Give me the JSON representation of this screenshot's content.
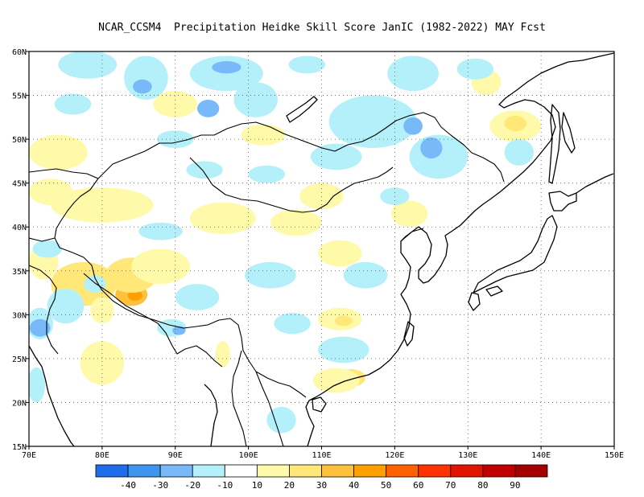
{
  "title": "NCAR_CCSM4  Precipitation Heidke Skill Score JanIC (1982-2022) MAY Fcst",
  "map": {
    "lon_range": [
      70,
      150
    ],
    "lat_range": [
      15,
      60
    ],
    "lon_ticks": [
      {
        "value": 70,
        "label": "70E"
      },
      {
        "value": 80,
        "label": "80E"
      },
      {
        "value": 90,
        "label": "90E"
      },
      {
        "value": 100,
        "label": "100E"
      },
      {
        "value": 110,
        "label": "110E"
      },
      {
        "value": 120,
        "label": "120E"
      },
      {
        "value": 130,
        "label": "130E"
      },
      {
        "value": 140,
        "label": "140E"
      },
      {
        "value": 150,
        "label": "150E"
      }
    ],
    "lat_ticks": [
      {
        "value": 15,
        "label": "15N"
      },
      {
        "value": 20,
        "label": "20N"
      },
      {
        "value": 25,
        "label": "25N"
      },
      {
        "value": 30,
        "label": "30N"
      },
      {
        "value": 35,
        "label": "35N"
      },
      {
        "value": 40,
        "label": "40N"
      },
      {
        "value": 45,
        "label": "45N"
      },
      {
        "value": 50,
        "label": "50N"
      },
      {
        "value": 55,
        "label": "55N"
      },
      {
        "value": 60,
        "label": "60N"
      }
    ],
    "grid": "dotted",
    "background_color": "#ffffff",
    "coastline_color": "#000000"
  },
  "colorbar": {
    "bins": [
      {
        "color": "#1e6eeb"
      },
      {
        "color": "#3c96f0"
      },
      {
        "color": "#78b9fa"
      },
      {
        "color": "#b4f0fa"
      },
      {
        "color": "#ffffff"
      },
      {
        "color": "#fffaaa"
      },
      {
        "color": "#ffe878"
      },
      {
        "color": "#ffc03c"
      },
      {
        "color": "#ffa000"
      },
      {
        "color": "#ff6000"
      },
      {
        "color": "#ff3200"
      },
      {
        "color": "#e11400"
      },
      {
        "color": "#c00000"
      },
      {
        "color": "#a50000"
      }
    ],
    "labels": [
      "-40",
      "-30",
      "-20",
      "-10",
      "10",
      "20",
      "30",
      "40",
      "50",
      "60",
      "70",
      "80",
      "90"
    ]
  },
  "skill_patches": [
    {
      "lon": 77.5,
      "lat": 33.5,
      "rx": 4.5,
      "ry": 2.5,
      "color": "#ffe878"
    },
    {
      "lon": 84,
      "lat": 32.3,
      "rx": 2.2,
      "ry": 1.3,
      "color": "#ffc03c"
    },
    {
      "lon": 84.5,
      "lat": 32.2,
      "rx": 1.0,
      "ry": 0.6,
      "color": "#ffa000"
    },
    {
      "lon": 84,
      "lat": 34.5,
      "rx": 3.5,
      "ry": 2.0,
      "color": "#ffe878"
    },
    {
      "lon": 88,
      "lat": 35.5,
      "rx": 4.0,
      "ry": 2.0,
      "color": "#fffaaa"
    },
    {
      "lon": 80,
      "lat": 42.5,
      "rx": 7.0,
      "ry": 2.0,
      "color": "#fffaaa"
    },
    {
      "lon": 74,
      "lat": 48.5,
      "rx": 4.0,
      "ry": 2.0,
      "color": "#fffaaa"
    },
    {
      "lon": 73,
      "lat": 44.0,
      "rx": 3.0,
      "ry": 1.5,
      "color": "#fffaaa"
    },
    {
      "lon": 96.5,
      "lat": 41.0,
      "rx": 4.5,
      "ry": 1.8,
      "color": "#fffaaa"
    },
    {
      "lon": 106.5,
      "lat": 40.5,
      "rx": 3.5,
      "ry": 1.5,
      "color": "#fffaaa"
    },
    {
      "lon": 112.5,
      "lat": 37.0,
      "rx": 3.0,
      "ry": 1.5,
      "color": "#fffaaa"
    },
    {
      "lon": 112.5,
      "lat": 29.5,
      "rx": 3.0,
      "ry": 1.3,
      "color": "#fffaaa"
    },
    {
      "lon": 113,
      "lat": 29.3,
      "rx": 1.2,
      "ry": 0.6,
      "color": "#ffe878"
    },
    {
      "lon": 114,
      "lat": 22.8,
      "rx": 2.0,
      "ry": 1.0,
      "color": "#ffe878"
    },
    {
      "lon": 112,
      "lat": 22.5,
      "rx": 3.2,
      "ry": 1.4,
      "color": "#fffaaa"
    },
    {
      "lon": 136.5,
      "lat": 51.5,
      "rx": 3.5,
      "ry": 1.8,
      "color": "#fffaaa"
    },
    {
      "lon": 136.5,
      "lat": 51.8,
      "rx": 1.5,
      "ry": 0.9,
      "color": "#ffe878"
    },
    {
      "lon": 132.5,
      "lat": 56.5,
      "rx": 2.0,
      "ry": 1.5,
      "color": "#fffaaa"
    },
    {
      "lon": 110,
      "lat": 43.5,
      "rx": 3.0,
      "ry": 1.5,
      "color": "#fffaaa"
    },
    {
      "lon": 80,
      "lat": 24.5,
      "rx": 3.0,
      "ry": 2.5,
      "color": "#fffaaa"
    },
    {
      "lon": 72,
      "lat": 36.0,
      "rx": 2.0,
      "ry": 2.0,
      "color": "#fffaaa"
    },
    {
      "lon": 96.5,
      "lat": 25.5,
      "rx": 1.0,
      "ry": 1.5,
      "color": "#fffaaa"
    },
    {
      "lon": 122,
      "lat": 41.5,
      "rx": 2.5,
      "ry": 1.5,
      "color": "#fffaaa"
    },
    {
      "lon": 102,
      "lat": 50.5,
      "rx": 3.0,
      "ry": 1.2,
      "color": "#fffaaa"
    },
    {
      "lon": 90,
      "lat": 54.0,
      "rx": 3.0,
      "ry": 1.5,
      "color": "#fffaaa"
    },
    {
      "lon": 80,
      "lat": 30.5,
      "rx": 1.6,
      "ry": 1.5,
      "color": "#fffaaa"
    },
    {
      "lon": 71.5,
      "lat": 29.0,
      "rx": 1.8,
      "ry": 1.8,
      "color": "#b4f0fa"
    },
    {
      "lon": 71.5,
      "lat": 28.5,
      "rx": 1.4,
      "ry": 1.0,
      "color": "#78b9fa"
    },
    {
      "lon": 75,
      "lat": 31.0,
      "rx": 2.5,
      "ry": 2.0,
      "color": "#b4f0fa"
    },
    {
      "lon": 78,
      "lat": 58.5,
      "rx": 4.0,
      "ry": 1.6,
      "color": "#b4f0fa"
    },
    {
      "lon": 86,
      "lat": 57.0,
      "rx": 3.0,
      "ry": 2.5,
      "color": "#b4f0fa"
    },
    {
      "lon": 85.5,
      "lat": 56.0,
      "rx": 1.3,
      "ry": 0.8,
      "color": "#78b9fa"
    },
    {
      "lon": 97,
      "lat": 57.5,
      "rx": 5.0,
      "ry": 2.0,
      "color": "#b4f0fa"
    },
    {
      "lon": 97,
      "lat": 58.2,
      "rx": 2.0,
      "ry": 0.7,
      "color": "#78b9fa"
    },
    {
      "lon": 94.5,
      "lat": 53.5,
      "rx": 1.5,
      "ry": 1.0,
      "color": "#78b9fa"
    },
    {
      "lon": 101,
      "lat": 54.5,
      "rx": 3.0,
      "ry": 2.0,
      "color": "#b4f0fa"
    },
    {
      "lon": 117,
      "lat": 52.0,
      "rx": 6.0,
      "ry": 3.0,
      "color": "#b4f0fa"
    },
    {
      "lon": 122.5,
      "lat": 51.5,
      "rx": 1.3,
      "ry": 1.0,
      "color": "#78b9fa"
    },
    {
      "lon": 112,
      "lat": 48.0,
      "rx": 3.5,
      "ry": 1.5,
      "color": "#b4f0fa"
    },
    {
      "lon": 126,
      "lat": 48.0,
      "rx": 4.0,
      "ry": 2.5,
      "color": "#b4f0fa"
    },
    {
      "lon": 125,
      "lat": 49.0,
      "rx": 1.5,
      "ry": 1.2,
      "color": "#78b9fa"
    },
    {
      "lon": 122.5,
      "lat": 57.5,
      "rx": 3.5,
      "ry": 2.0,
      "color": "#b4f0fa"
    },
    {
      "lon": 137,
      "lat": 48.5,
      "rx": 2.0,
      "ry": 1.5,
      "color": "#b4f0fa"
    },
    {
      "lon": 88,
      "lat": 39.5,
      "rx": 3.0,
      "ry": 1.0,
      "color": "#b4f0fa"
    },
    {
      "lon": 93,
      "lat": 32.0,
      "rx": 3.0,
      "ry": 1.5,
      "color": "#b4f0fa"
    },
    {
      "lon": 89.5,
      "lat": 28.5,
      "rx": 2.0,
      "ry": 1.0,
      "color": "#b4f0fa"
    },
    {
      "lon": 90.5,
      "lat": 28.2,
      "rx": 0.9,
      "ry": 0.5,
      "color": "#78b9fa"
    },
    {
      "lon": 103,
      "lat": 34.5,
      "rx": 3.5,
      "ry": 1.5,
      "color": "#b4f0fa"
    },
    {
      "lon": 106,
      "lat": 29.0,
      "rx": 2.5,
      "ry": 1.2,
      "color": "#b4f0fa"
    },
    {
      "lon": 116,
      "lat": 34.5,
      "rx": 3.0,
      "ry": 1.5,
      "color": "#b4f0fa"
    },
    {
      "lon": 113,
      "lat": 26.0,
      "rx": 3.5,
      "ry": 1.5,
      "color": "#b4f0fa"
    },
    {
      "lon": 72.5,
      "lat": 37.5,
      "rx": 2.0,
      "ry": 1.0,
      "color": "#b4f0fa"
    },
    {
      "lon": 71,
      "lat": 22.0,
      "rx": 1.2,
      "ry": 2.0,
      "color": "#b4f0fa"
    },
    {
      "lon": 94,
      "lat": 46.5,
      "rx": 2.5,
      "ry": 1.0,
      "color": "#b4f0fa"
    },
    {
      "lon": 102.5,
      "lat": 46.0,
      "rx": 2.5,
      "ry": 1.0,
      "color": "#b4f0fa"
    },
    {
      "lon": 76,
      "lat": 54.0,
      "rx": 2.5,
      "ry": 1.2,
      "color": "#b4f0fa"
    },
    {
      "lon": 108,
      "lat": 58.5,
      "rx": 2.5,
      "ry": 1.0,
      "color": "#b4f0fa"
    },
    {
      "lon": 131,
      "lat": 58.0,
      "rx": 2.5,
      "ry": 1.2,
      "color": "#b4f0fa"
    },
    {
      "lon": 104.5,
      "lat": 18.0,
      "rx": 2.0,
      "ry": 1.5,
      "color": "#b4f0fa"
    },
    {
      "lon": 120,
      "lat": 43.5,
      "rx": 2.0,
      "ry": 1.0,
      "color": "#b4f0fa"
    },
    {
      "lon": 79,
      "lat": 33.5,
      "rx": 1.5,
      "ry": 1.0,
      "color": "#b4f0fa"
    },
    {
      "lon": 90,
      "lat": 50.0,
      "rx": 2.5,
      "ry": 1.0,
      "color": "#b4f0fa"
    }
  ]
}
